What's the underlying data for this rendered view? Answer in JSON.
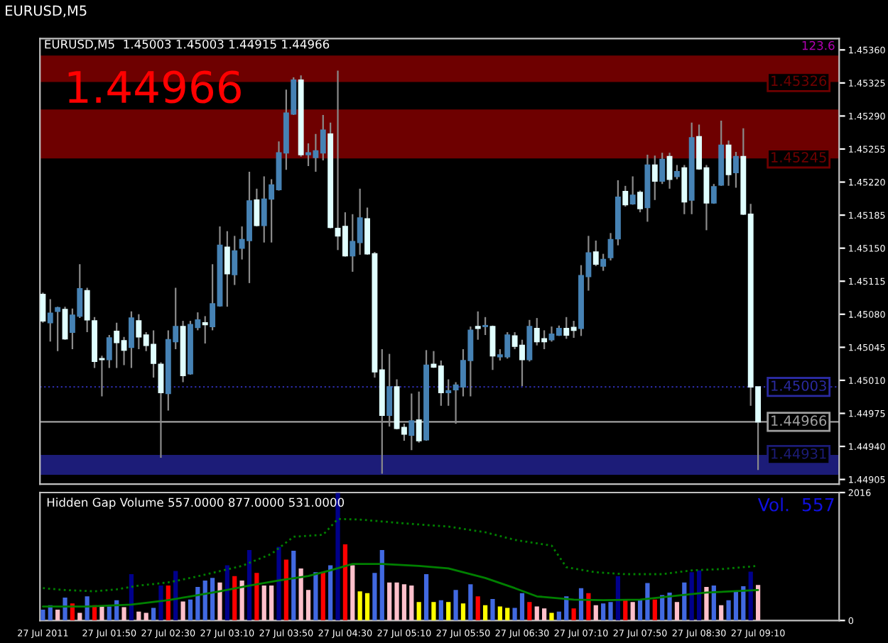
{
  "chart_data": [
    {
      "type": "candlestick",
      "title": "EURUSD,M5",
      "subtitle": "EURUSD,M5  1.45003 1.45003 1.44915 1.44966",
      "annotations": [
        "1.44966",
        "123.6"
      ],
      "x": [
        "2011-07-27T01:05",
        "2011-07-27T01:10",
        "2011-07-27T01:15",
        "2011-07-27T01:20",
        "2011-07-27T01:25",
        "2011-07-27T01:30",
        "2011-07-27T01:35",
        "2011-07-27T01:40",
        "2011-07-27T01:45",
        "2011-07-27T01:50",
        "2011-07-27T01:55",
        "2011-07-27T02:00",
        "2011-07-27T02:05",
        "2011-07-27T02:10",
        "2011-07-27T02:15",
        "2011-07-27T02:20",
        "2011-07-27T02:25",
        "2011-07-27T02:30",
        "2011-07-27T02:35",
        "2011-07-27T02:40",
        "2011-07-27T02:45",
        "2011-07-27T02:50",
        "2011-07-27T02:55",
        "2011-07-27T03:00",
        "2011-07-27T03:05",
        "2011-07-27T03:10",
        "2011-07-27T03:15",
        "2011-07-27T03:20",
        "2011-07-27T03:25",
        "2011-07-27T03:30",
        "2011-07-27T03:35",
        "2011-07-27T03:40",
        "2011-07-27T03:45",
        "2011-07-27T03:50",
        "2011-07-27T03:55",
        "2011-07-27T04:00",
        "2011-07-27T04:05",
        "2011-07-27T04:10",
        "2011-07-27T04:15",
        "2011-07-27T04:20",
        "2011-07-27T04:25",
        "2011-07-27T04:30",
        "2011-07-27T04:35",
        "2011-07-27T04:40",
        "2011-07-27T04:45",
        "2011-07-27T04:50",
        "2011-07-27T04:55",
        "2011-07-27T05:00",
        "2011-07-27T05:05",
        "2011-07-27T05:10",
        "2011-07-27T05:15",
        "2011-07-27T05:20",
        "2011-07-27T05:25",
        "2011-07-27T05:30",
        "2011-07-27T05:35",
        "2011-07-27T05:40",
        "2011-07-27T05:45",
        "2011-07-27T05:50",
        "2011-07-27T05:55",
        "2011-07-27T06:00",
        "2011-07-27T06:05",
        "2011-07-27T06:10",
        "2011-07-27T06:15",
        "2011-07-27T06:20",
        "2011-07-27T06:25",
        "2011-07-27T06:30",
        "2011-07-27T06:35",
        "2011-07-27T06:40",
        "2011-07-27T06:45",
        "2011-07-27T06:50",
        "2011-07-27T06:55",
        "2011-07-27T07:00",
        "2011-07-27T07:05",
        "2011-07-27T07:10",
        "2011-07-27T07:15",
        "2011-07-27T07:20",
        "2011-07-27T07:25",
        "2011-07-27T07:30",
        "2011-07-27T07:35",
        "2011-07-27T07:40",
        "2011-07-27T07:45",
        "2011-07-27T07:50",
        "2011-07-27T07:55",
        "2011-07-27T08:00",
        "2011-07-27T08:05",
        "2011-07-27T08:10",
        "2011-07-27T08:15",
        "2011-07-27T08:20",
        "2011-07-27T08:25",
        "2011-07-27T08:30",
        "2011-07-27T08:35",
        "2011-07-27T08:40",
        "2011-07-27T08:45",
        "2011-07-27T08:50",
        "2011-07-27T08:55",
        "2011-07-27T09:00",
        "2011-07-27T09:05",
        "2011-07-27T09:10"
      ],
      "ohlc": [
        [
          1.45101,
          1.45103,
          1.45071,
          1.45073
        ],
        [
          1.45071,
          1.45096,
          1.45051,
          1.45081
        ],
        [
          1.45083,
          1.45088,
          1.45041,
          1.45087
        ],
        [
          1.45085,
          1.45088,
          1.45053,
          1.45054
        ],
        [
          1.45061,
          1.45086,
          1.45043,
          1.45079
        ],
        [
          1.45078,
          1.45133,
          1.45076,
          1.45107
        ],
        [
          1.45105,
          1.45108,
          1.45061,
          1.45074
        ],
        [
          1.45073,
          1.45077,
          1.45023,
          1.4503
        ],
        [
          1.45033,
          1.45036,
          1.44993,
          1.45032
        ],
        [
          1.45032,
          1.45058,
          1.45023,
          1.45055
        ],
        [
          1.45062,
          1.45071,
          1.45023,
          1.4505
        ],
        [
          1.45052,
          1.45056,
          1.45026,
          1.45042
        ],
        [
          1.45045,
          1.45083,
          1.45023,
          1.45076
        ],
        [
          1.45073,
          1.4508,
          1.45043,
          1.45056
        ],
        [
          1.45058,
          1.45061,
          1.45041,
          1.45047
        ],
        [
          1.45048,
          1.45063,
          1.45013,
          1.45028
        ],
        [
          1.45027,
          1.45029,
          1.44928,
          1.44997
        ],
        [
          1.44996,
          1.45063,
          1.44978,
          1.45053
        ],
        [
          1.45051,
          1.45108,
          1.45043,
          1.45067
        ],
        [
          1.45067,
          1.45073,
          1.45008,
          1.45015
        ],
        [
          1.45017,
          1.45073,
          1.45016,
          1.45069
        ],
        [
          1.45066,
          1.45082,
          1.45063,
          1.45074
        ],
        [
          1.45071,
          1.45078,
          1.45049,
          1.45069
        ],
        [
          1.45067,
          1.45133,
          1.45063,
          1.45091
        ],
        [
          1.45089,
          1.45173,
          1.45088,
          1.45153
        ],
        [
          1.45151,
          1.45168,
          1.45088,
          1.45123
        ],
        [
          1.45122,
          1.45163,
          1.45111,
          1.45147
        ],
        [
          1.4515,
          1.45173,
          1.45138,
          1.45159
        ],
        [
          1.45158,
          1.45231,
          1.45113,
          1.452
        ],
        [
          1.45201,
          1.45213,
          1.45173,
          1.45174
        ],
        [
          1.45174,
          1.45226,
          1.45156,
          1.45202
        ],
        [
          1.45202,
          1.45223,
          1.45156,
          1.45217
        ],
        [
          1.45212,
          1.45263,
          1.45211,
          1.45251
        ],
        [
          1.45251,
          1.45318,
          1.45233,
          1.45293
        ],
        [
          1.45292,
          1.45331,
          1.45291,
          1.45328
        ],
        [
          1.45328,
          1.45333,
          1.45247,
          1.45249
        ],
        [
          1.45249,
          1.45261,
          1.45237,
          1.45251
        ],
        [
          1.45246,
          1.45271,
          1.45231,
          1.45253
        ],
        [
          1.45251,
          1.45291,
          1.45243,
          1.45275
        ],
        [
          1.45271,
          1.45283,
          1.45171,
          1.45172
        ],
        [
          1.45171,
          1.45338,
          1.45148,
          1.45163
        ],
        [
          1.45173,
          1.45188,
          1.45141,
          1.45142
        ],
        [
          1.45142,
          1.45186,
          1.45125,
          1.45157
        ],
        [
          1.45156,
          1.45213,
          1.45143,
          1.45182
        ],
        [
          1.45181,
          1.45193,
          1.45143,
          1.45144
        ],
        [
          1.45144,
          1.45146,
          1.45013,
          1.45019
        ],
        [
          1.45021,
          1.45043,
          1.44911,
          1.44973
        ],
        [
          1.44973,
          1.45038,
          1.44961,
          1.45003
        ],
        [
          1.45003,
          1.45011,
          1.44958,
          1.44959
        ],
        [
          1.4496,
          1.44964,
          1.44946,
          1.44953
        ],
        [
          1.44952,
          1.44996,
          1.44936,
          1.44967
        ],
        [
          1.44968,
          1.44998,
          1.44944,
          1.44946
        ],
        [
          1.44947,
          1.45042,
          1.44946,
          1.45026
        ],
        [
          1.45027,
          1.45041,
          1.45023,
          1.45024
        ],
        [
          1.45025,
          1.45031,
          1.44983,
          1.44997
        ],
        [
          1.44997,
          1.45011,
          1.44983,
          1.44999
        ],
        [
          1.45,
          1.45008,
          1.44964,
          1.45005
        ],
        [
          1.45003,
          1.45043,
          1.44993,
          1.45031
        ],
        [
          1.45031,
          1.45067,
          1.44993,
          1.45063
        ],
        [
          1.45067,
          1.45083,
          1.45053,
          1.45065
        ],
        [
          1.45067,
          1.45077,
          1.45058,
          1.45068
        ],
        [
          1.45067,
          1.45068,
          1.45021,
          1.45036
        ],
        [
          1.45035,
          1.45043,
          1.45031,
          1.45037
        ],
        [
          1.45035,
          1.45061,
          1.45033,
          1.45058
        ],
        [
          1.45057,
          1.45061,
          1.45043,
          1.45046
        ],
        [
          1.45047,
          1.45053,
          1.45004,
          1.45032
        ],
        [
          1.45032,
          1.45074,
          1.4503,
          1.45067
        ],
        [
          1.45065,
          1.45076,
          1.45047,
          1.45051
        ],
        [
          1.45054,
          1.45063,
          1.45043,
          1.45051
        ],
        [
          1.45053,
          1.45067,
          1.45051,
          1.45059
        ],
        [
          1.45058,
          1.45068,
          1.45057,
          1.45065
        ],
        [
          1.45065,
          1.45077,
          1.45054,
          1.45058
        ],
        [
          1.45066,
          1.45073,
          1.45055,
          1.45063
        ],
        [
          1.45065,
          1.45132,
          1.45057,
          1.45121
        ],
        [
          1.4512,
          1.45163,
          1.45105,
          1.45145
        ],
        [
          1.45146,
          1.45158,
          1.45131,
          1.45133
        ],
        [
          1.45131,
          1.45144,
          1.45126,
          1.45138
        ],
        [
          1.4514,
          1.45166,
          1.45137,
          1.45159
        ],
        [
          1.4516,
          1.45222,
          1.45153,
          1.45204
        ],
        [
          1.4521,
          1.45216,
          1.45194,
          1.45196
        ],
        [
          1.45197,
          1.45226,
          1.45196,
          1.45206
        ],
        [
          1.45209,
          1.45211,
          1.45188,
          1.45192
        ],
        [
          1.45193,
          1.45249,
          1.45178,
          1.45238
        ],
        [
          1.45238,
          1.45248,
          1.45201,
          1.45221
        ],
        [
          1.45221,
          1.45251,
          1.45218,
          1.45244
        ],
        [
          1.45247,
          1.45251,
          1.45213,
          1.45223
        ],
        [
          1.45226,
          1.45238,
          1.45223,
          1.45231
        ],
        [
          1.45235,
          1.45238,
          1.45186,
          1.45199
        ],
        [
          1.45201,
          1.45283,
          1.45186,
          1.45267
        ],
        [
          1.45268,
          1.45281,
          1.45233,
          1.45234
        ],
        [
          1.45235,
          1.45238,
          1.45169,
          1.45198
        ],
        [
          1.45198,
          1.45218,
          1.45197,
          1.45215
        ],
        [
          1.45217,
          1.45285,
          1.45216,
          1.45259
        ],
        [
          1.45259,
          1.45264,
          1.45216,
          1.45228
        ],
        [
          1.4523,
          1.45252,
          1.45214,
          1.45247
        ],
        [
          1.45247,
          1.45277,
          1.45185,
          1.45186
        ],
        [
          1.45186,
          1.45197,
          1.44983,
          1.45003
        ],
        [
          1.45003,
          1.45003,
          1.44915,
          1.44966
        ]
      ],
      "colors": [
        "#e0ffff",
        "#4682b4",
        "#4682b4",
        "#e0ffff",
        "#4682b4",
        "#4682b4",
        "#e0ffff",
        "#e0ffff",
        "#e0ffff",
        "#4682b4",
        "#e0ffff",
        "#e0ffff",
        "#4682b4",
        "#e0ffff",
        "#e0ffff",
        "#e0ffff",
        "#e0ffff",
        "#4682b4",
        "#4682b4",
        "#e0ffff",
        "#4682b4",
        "#4682b4",
        "#e0ffff",
        "#4682b4",
        "#4682b4",
        "#e0ffff",
        "#4682b4",
        "#4682b4",
        "#4682b4",
        "#e0ffff",
        "#4682b4",
        "#4682b4",
        "#4682b4",
        "#4682b4",
        "#4682b4",
        "#e0ffff",
        "#4682b4",
        "#4682b4",
        "#4682b4",
        "#e0ffff",
        "#e0ffff",
        "#e0ffff",
        "#4682b4",
        "#4682b4",
        "#e0ffff",
        "#e0ffff",
        "#e0ffff",
        "#4682b4",
        "#e0ffff",
        "#e0ffff",
        "#4682b4",
        "#e0ffff",
        "#4682b4",
        "#e0ffff",
        "#e0ffff",
        "#4682b4",
        "#4682b4",
        "#4682b4",
        "#4682b4",
        "#e0ffff",
        "#4682b4",
        "#e0ffff",
        "#4682b4",
        "#4682b4",
        "#e0ffff",
        "#e0ffff",
        "#4682b4",
        "#e0ffff",
        "#e0ffff",
        "#4682b4",
        "#4682b4",
        "#e0ffff",
        "#e0ffff",
        "#4682b4",
        "#4682b4",
        "#e0ffff",
        "#4682b4",
        "#4682b4",
        "#4682b4",
        "#e0ffff",
        "#4682b4",
        "#e0ffff",
        "#4682b4",
        "#e0ffff",
        "#4682b4",
        "#e0ffff",
        "#4682b4",
        "#e0ffff",
        "#4682b4",
        "#e0ffff",
        "#e0ffff",
        "#4682b4",
        "#4682b4",
        "#e0ffff",
        "#4682b4",
        "#e0ffff",
        "#e0ffff",
        "#e0ffff"
      ],
      "xlim": [
        "2011-07-27T01:03",
        "2011-07-27T10:05"
      ],
      "ylim": [
        1.449,
        1.45372
      ],
      "yticks": [
        {
          "value": 1.4536,
          "label": "1.45360"
        },
        1.45325,
        {
          "value": 1.4529,
          "label": "1.45290"
        },
        1.45255,
        {
          "value": 1.4522,
          "label": "1.45220"
        },
        1.45185,
        {
          "value": 1.4515,
          "label": "1.45150"
        },
        1.45115,
        {
          "value": 1.4508,
          "label": "1.45080"
        },
        1.45045,
        {
          "value": 1.4501,
          "label": "1.45010"
        },
        1.44975,
        {
          "value": 1.4494,
          "label": "1.44940"
        },
        1.44905
      ],
      "bands": [
        {
          "axis": "y",
          "from": 1.45326,
          "to": 1.45354,
          "label": "1.45326",
          "color": "#6e0000"
        },
        {
          "axis": "y",
          "from": 1.45245,
          "to": 1.45297,
          "label": "1.45245",
          "color": "#6e0000"
        },
        {
          "axis": "y",
          "from": 1.44931,
          "to": 1.4491,
          "label": "1.44931",
          "color": "#1c1c78"
        }
      ],
      "ref_lines": [
        {
          "axis": "y",
          "value": 1.44966,
          "label": "1.44966",
          "color": "#a0a0a0",
          "line_style": "solid"
        },
        {
          "axis": "y",
          "value": 1.45003,
          "label": "1.45003",
          "color": "#2a2aa0",
          "line_style": "dotted"
        }
      ],
      "tick_labels": "y",
      "grid": false,
      "legend": false
    },
    {
      "type": "bar",
      "annotations": [
        "Hidden Gap Volume 557.0000 877.0000 531.0000",
        "Vol.  557"
      ],
      "x": [
        "2011-07-27T01:05",
        "2011-07-27T01:10",
        "2011-07-27T01:15",
        "2011-07-27T01:20",
        "2011-07-27T01:25",
        "2011-07-27T01:30",
        "2011-07-27T01:35",
        "2011-07-27T01:40",
        "2011-07-27T01:45",
        "2011-07-27T01:50",
        "2011-07-27T01:55",
        "2011-07-27T02:00",
        "2011-07-27T02:05",
        "2011-07-27T02:10",
        "2011-07-27T02:15",
        "2011-07-27T02:20",
        "2011-07-27T02:25",
        "2011-07-27T02:30",
        "2011-07-27T02:35",
        "2011-07-27T02:40",
        "2011-07-27T02:45",
        "2011-07-27T02:50",
        "2011-07-27T02:55",
        "2011-07-27T03:00",
        "2011-07-27T03:05",
        "2011-07-27T03:10",
        "2011-07-27T03:15",
        "2011-07-27T03:20",
        "2011-07-27T03:25",
        "2011-07-27T03:30",
        "2011-07-27T03:35",
        "2011-07-27T03:40",
        "2011-07-27T03:45",
        "2011-07-27T03:50",
        "2011-07-27T03:55",
        "2011-07-27T04:00",
        "2011-07-27T04:05",
        "2011-07-27T04:10",
        "2011-07-27T04:15",
        "2011-07-27T04:20",
        "2011-07-27T04:25",
        "2011-07-27T04:30",
        "2011-07-27T04:35",
        "2011-07-27T04:40",
        "2011-07-27T04:45",
        "2011-07-27T04:50",
        "2011-07-27T04:55",
        "2011-07-27T05:00",
        "2011-07-27T05:05",
        "2011-07-27T05:10",
        "2011-07-27T05:15",
        "2011-07-27T05:20",
        "2011-07-27T05:25",
        "2011-07-27T05:30",
        "2011-07-27T05:35",
        "2011-07-27T05:40",
        "2011-07-27T05:45",
        "2011-07-27T05:50",
        "2011-07-27T05:55",
        "2011-07-27T06:00",
        "2011-07-27T06:05",
        "2011-07-27T06:10",
        "2011-07-27T06:15",
        "2011-07-27T06:20",
        "2011-07-27T06:25",
        "2011-07-27T06:30",
        "2011-07-27T06:35",
        "2011-07-27T06:40",
        "2011-07-27T06:45",
        "2011-07-27T06:50",
        "2011-07-27T06:55",
        "2011-07-27T07:00",
        "2011-07-27T07:05",
        "2011-07-27T07:10",
        "2011-07-27T07:15",
        "2011-07-27T07:20",
        "2011-07-27T07:25",
        "2011-07-27T07:30",
        "2011-07-27T07:35",
        "2011-07-27T07:40",
        "2011-07-27T07:45",
        "2011-07-27T07:50",
        "2011-07-27T07:55",
        "2011-07-27T08:00",
        "2011-07-27T08:05",
        "2011-07-27T08:10",
        "2011-07-27T08:15",
        "2011-07-27T08:20",
        "2011-07-27T08:25",
        "2011-07-27T08:30",
        "2011-07-27T08:35",
        "2011-07-27T08:40",
        "2011-07-27T08:45",
        "2011-07-27T08:50",
        "2011-07-27T08:55",
        "2011-07-27T09:00",
        "2011-07-27T09:05",
        "2011-07-27T09:10"
      ],
      "series": [
        {
          "type": "bar",
          "values": [
            170,
            240,
            170,
            360,
            270,
            120,
            380,
            240,
            220,
            220,
            320,
            210,
            730,
            140,
            120,
            200,
            550,
            550,
            780,
            300,
            330,
            530,
            630,
            670,
            600,
            870,
            700,
            630,
            1110,
            750,
            550,
            550,
            1160,
            960,
            1100,
            820,
            480,
            760,
            760,
            870,
            2010,
            1200,
            870,
            460,
            430,
            750,
            1110,
            600,
            600,
            570,
            550,
            290,
            730,
            290,
            320,
            290,
            480,
            270,
            570,
            380,
            240,
            340,
            220,
            200,
            200,
            430,
            290,
            220,
            190,
            120,
            140,
            380,
            190,
            510,
            430,
            240,
            270,
            290,
            700,
            320,
            290,
            330,
            590,
            330,
            400,
            440,
            290,
            600,
            760,
            790,
            530,
            550,
            240,
            320,
            460,
            540,
            770,
            560
          ],
          "colors": [
            "#4169e1",
            "#4169e1",
            "#ffc0cb",
            "#4169e1",
            "#ff0000",
            "#ffc0cb",
            "#4169e1",
            "#ff0000",
            "#ffc0cb",
            "#4169e1",
            "#4169e1",
            "#ffc0cb",
            "#00008b",
            "#ffc0cb",
            "#ffc0cb",
            "#4169e1",
            "#00008b",
            "#ff0000",
            "#00008b",
            "#ffc0cb",
            "#4169e1",
            "#4169e1",
            "#4169e1",
            "#4169e1",
            "#ffc0cb",
            "#00008b",
            "#ff0000",
            "#ffc0cb",
            "#00008b",
            "#ff0000",
            "#ffc0cb",
            "#ffc0cb",
            "#00008b",
            "#ff0000",
            "#4169e1",
            "#ffc0cb",
            "#ffc0cb",
            "#4169e1",
            "#ff0000",
            "#4169e1",
            "#00008b",
            "#ff0000",
            "#ffc0cb",
            "#ffff00",
            "#ffff00",
            "#4169e1",
            "#4169e1",
            "#ffc0cb",
            "#ffc0cb",
            "#ffc0cb",
            "#ffc0cb",
            "#ffff00",
            "#4169e1",
            "#ffff00",
            "#4169e1",
            "#ffff00",
            "#4169e1",
            "#ffff00",
            "#4169e1",
            "#ff0000",
            "#ffff00",
            "#4169e1",
            "#ffff00",
            "#ffff00",
            "#4169e1",
            "#4169e1",
            "#ff0000",
            "#ffc0cb",
            "#ffc0cb",
            "#ffff00",
            "#4169e1",
            "#4169e1",
            "#ff0000",
            "#4169e1",
            "#ff0000",
            "#ffc0cb",
            "#4169e1",
            "#4169e1",
            "#00008b",
            "#ff0000",
            "#ffc0cb",
            "#4169e1",
            "#4169e1",
            "#ff0000",
            "#4169e1",
            "#4169e1",
            "#ffc0cb",
            "#4169e1",
            "#00008b",
            "#00008b",
            "#ffc0cb",
            "#4169e1",
            "#ffc0cb",
            "#4169e1",
            "#4169e1",
            "#4169e1",
            "#00008b",
            "#ffc0cb"
          ]
        },
        {
          "type": "line",
          "color": "#008000",
          "line_style": "dotted",
          "x": [
            "2011-07-27T01:05",
            "2011-07-27T01:20",
            "2011-07-27T01:40",
            "2011-07-27T01:55",
            "2011-07-27T02:10",
            "2011-07-27T02:30",
            "2011-07-27T02:45",
            "2011-07-27T03:00",
            "2011-07-27T03:20",
            "2011-07-27T03:40",
            "2011-07-27T03:55",
            "2011-07-27T04:15",
            "2011-07-27T04:25",
            "2011-07-27T04:40",
            "2011-07-27T05:10",
            "2011-07-27T05:40",
            "2011-07-27T06:05",
            "2011-07-27T06:25",
            "2011-07-27T06:50",
            "2011-07-27T07:00",
            "2011-07-27T07:20",
            "2011-07-27T07:40",
            "2011-07-27T08:05",
            "2011-07-27T08:25",
            "2011-07-27T08:45",
            "2011-07-27T09:10"
          ],
          "values": [
            510,
            480,
            460,
            490,
            550,
            600,
            670,
            750,
            860,
            1050,
            1320,
            1350,
            1600,
            1590,
            1530,
            1480,
            1390,
            1270,
            1180,
            840,
            760,
            730,
            730,
            790,
            810,
            860
          ]
        },
        {
          "type": "line",
          "color": "#008000",
          "line_style": "solid",
          "x": [
            "2011-07-27T01:05",
            "2011-07-27T01:35",
            "2011-07-27T02:05",
            "2011-07-27T02:30",
            "2011-07-27T02:45",
            "2011-07-27T03:05",
            "2011-07-27T03:25",
            "2011-07-27T03:45",
            "2011-07-27T04:05",
            "2011-07-27T04:20",
            "2011-07-27T04:35",
            "2011-07-27T04:55",
            "2011-07-27T05:20",
            "2011-07-27T05:40",
            "2011-07-27T06:05",
            "2011-07-27T06:25",
            "2011-07-27T06:40",
            "2011-07-27T07:05",
            "2011-07-27T07:25",
            "2011-07-27T07:50",
            "2011-07-27T08:10",
            "2011-07-27T08:35",
            "2011-07-27T09:10"
          ],
          "values": [
            220,
            220,
            250,
            320,
            380,
            460,
            550,
            630,
            700,
            790,
            890,
            890,
            860,
            820,
            670,
            510,
            380,
            330,
            320,
            330,
            380,
            440,
            480
          ]
        }
      ],
      "xlim": [
        "2011-07-27T01:03",
        "2011-07-27T10:05"
      ],
      "ylim": [
        0,
        2016
      ],
      "yticks": [
        0,
        2016
      ],
      "xticks": [
        {
          "value": "2011-07-27T01:05",
          "label": "27 Jul 2011"
        },
        {
          "value": "2011-07-27T01:50",
          "label": "27 Jul 01:50"
        },
        {
          "value": "2011-07-27T02:30",
          "label": "27 Jul 02:30"
        },
        {
          "value": "2011-07-27T03:10",
          "label": "27 Jul 03:10"
        },
        {
          "value": "2011-07-27T03:50",
          "label": "27 Jul 03:50"
        },
        {
          "value": "2011-07-27T04:30",
          "label": "27 Jul 04:30"
        },
        {
          "value": "2011-07-27T05:10",
          "label": "27 Jul 05:10"
        },
        {
          "value": "2011-07-27T05:50",
          "label": "27 Jul 05:50"
        },
        {
          "value": "2011-07-27T06:30",
          "label": "27 Jul 06:30"
        },
        {
          "value": "2011-07-27T07:10",
          "label": "27 Jul 07:10"
        },
        {
          "value": "2011-07-27T07:50",
          "label": "27 Jul 07:50"
        },
        {
          "value": "2011-07-27T08:30",
          "label": "27 Jul 08:30"
        },
        {
          "value": "2011-07-27T09:10",
          "label": "27 Jul 09:10"
        }
      ],
      "grid": false,
      "legend": false
    }
  ]
}
